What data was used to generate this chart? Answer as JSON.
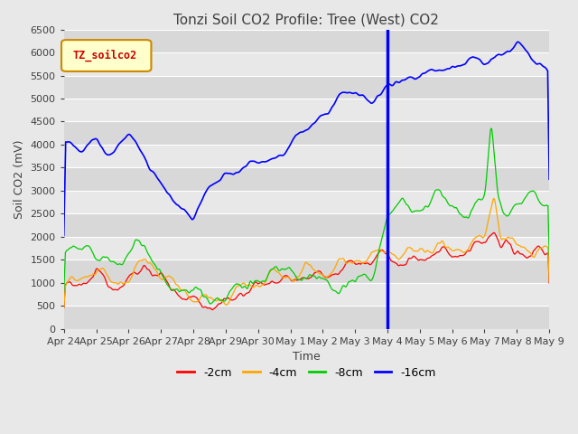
{
  "title": "Tonzi Soil CO2 Profile: Tree (West) CO2",
  "ylabel": "Soil CO2 (mV)",
  "xlabel": "Time",
  "legend_label": "TZ_soilco2",
  "series_labels": [
    "-2cm",
    "-4cm",
    "-8cm",
    "-16cm"
  ],
  "series_colors": [
    "#ff0000",
    "#ffa500",
    "#00cc00",
    "#0000ff"
  ],
  "ylim": [
    0,
    6500
  ],
  "background_color": "#e8e8e8",
  "vline_x": 10.0,
  "x_tick_labels": [
    "Apr 24",
    "Apr 25",
    "Apr 26",
    "Apr 27",
    "Apr 28",
    "Apr 29",
    "Apr 30",
    "May 1",
    "May 2",
    "May 3",
    "May 4",
    "May 5",
    "May 6",
    "May 7",
    "May 8",
    "May 9"
  ],
  "title_fontsize": 11,
  "axis_fontsize": 9,
  "tick_fontsize": 8
}
